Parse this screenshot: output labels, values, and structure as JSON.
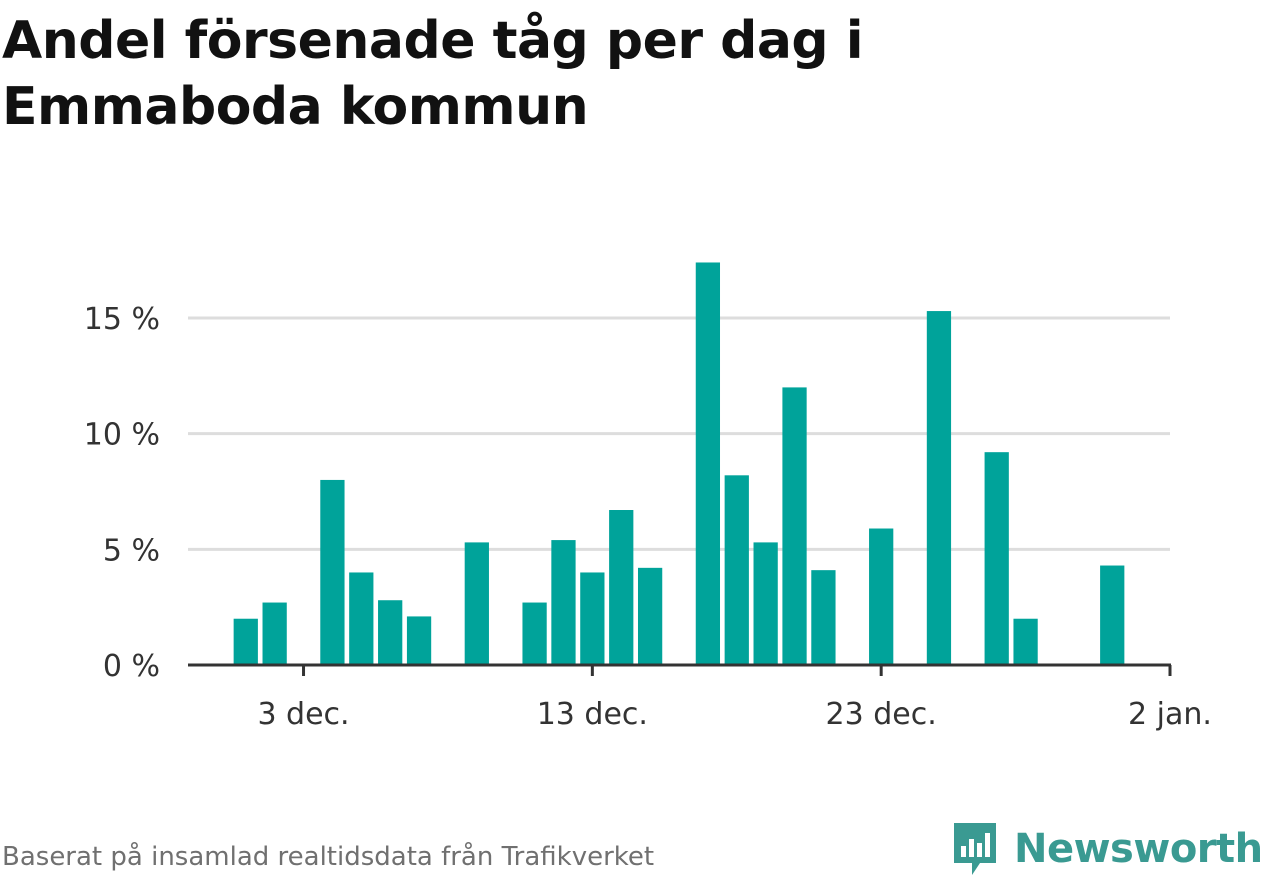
{
  "title": "Andel försenade tåg per dag i Emmaboda kommun",
  "source": "Baserat på insamlad realtidsdata från Trafikverket",
  "brand": {
    "name": "Newsworthy",
    "icon": "newsworthy-logo-icon",
    "color": "#3a9a92"
  },
  "colors": {
    "bar": "#00a39a",
    "grid": "#dddddd",
    "axis": "#333333"
  },
  "chart_data": {
    "type": "bar",
    "title": "Andel försenade tåg per dag i Emmaboda kommun",
    "xlabel": "",
    "ylabel": "",
    "x_range": [
      "2022-11-29",
      "2023-01-02"
    ],
    "ylim": [
      0,
      17.5
    ],
    "yticks": [
      {
        "value": 0,
        "label": "0 %"
      },
      {
        "value": 5,
        "label": "5 %"
      },
      {
        "value": 10,
        "label": "10 %"
      },
      {
        "value": 15,
        "label": "15 %"
      }
    ],
    "xticks": [
      {
        "date": "2022-12-03",
        "label": "3 dec."
      },
      {
        "date": "2022-12-13",
        "label": "13 dec."
      },
      {
        "date": "2022-12-23",
        "label": "23 dec."
      },
      {
        "date": "2023-01-02",
        "label": "2 jan."
      }
    ],
    "grid": true,
    "series": [
      {
        "points": [
          {
            "date": "2022-12-01",
            "value": 2.0
          },
          {
            "date": "2022-12-02",
            "value": 2.7
          },
          {
            "date": "2022-12-03",
            "value": 0
          },
          {
            "date": "2022-12-04",
            "value": 8.0
          },
          {
            "date": "2022-12-05",
            "value": 4.0
          },
          {
            "date": "2022-12-06",
            "value": 2.8
          },
          {
            "date": "2022-12-07",
            "value": 2.1
          },
          {
            "date": "2022-12-08",
            "value": 0
          },
          {
            "date": "2022-12-09",
            "value": 5.3
          },
          {
            "date": "2022-12-10",
            "value": 0
          },
          {
            "date": "2022-12-11",
            "value": 2.7
          },
          {
            "date": "2022-12-12",
            "value": 5.4
          },
          {
            "date": "2022-12-13",
            "value": 4.0
          },
          {
            "date": "2022-12-14",
            "value": 6.7
          },
          {
            "date": "2022-12-15",
            "value": 4.2
          },
          {
            "date": "2022-12-16",
            "value": 0
          },
          {
            "date": "2022-12-17",
            "value": 17.4
          },
          {
            "date": "2022-12-18",
            "value": 8.2
          },
          {
            "date": "2022-12-19",
            "value": 5.3
          },
          {
            "date": "2022-12-20",
            "value": 12.0
          },
          {
            "date": "2022-12-21",
            "value": 4.1
          },
          {
            "date": "2022-12-22",
            "value": 0
          },
          {
            "date": "2022-12-23",
            "value": 5.9
          },
          {
            "date": "2022-12-24",
            "value": 0
          },
          {
            "date": "2022-12-25",
            "value": 15.3
          },
          {
            "date": "2022-12-26",
            "value": 0
          },
          {
            "date": "2022-12-27",
            "value": 9.2
          },
          {
            "date": "2022-12-28",
            "value": 2.0
          },
          {
            "date": "2022-12-29",
            "value": 0
          },
          {
            "date": "2022-12-30",
            "value": 0
          },
          {
            "date": "2022-12-31",
            "value": 4.3
          }
        ]
      }
    ]
  }
}
